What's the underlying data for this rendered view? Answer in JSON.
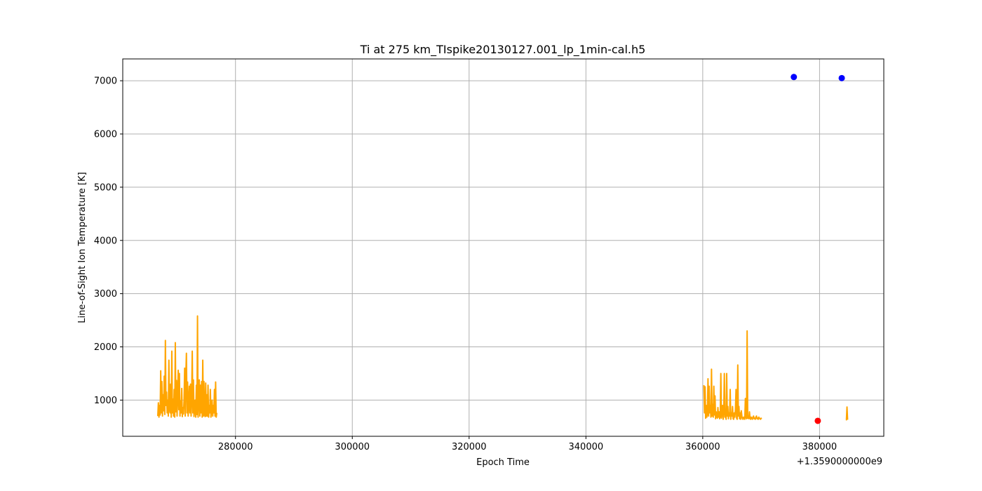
{
  "chart_data": {
    "type": "line",
    "title": "Ti at 275 km_TIspike20130127.001_lp_1min-cal.h5",
    "xlabel": "Epoch Time",
    "ylabel": "Line-of-Sight Ion Temperature [K]",
    "x_offset_text": "+1.3590000000e9",
    "xlim": [
      260700,
      391000
    ],
    "ylim": [
      320,
      7410
    ],
    "xticks": [
      280000,
      300000,
      320000,
      340000,
      360000,
      380000
    ],
    "xtick_labels": [
      "280000",
      "300000",
      "320000",
      "340000",
      "360000",
      "380000"
    ],
    "yticks": [
      1000,
      2000,
      3000,
      4000,
      5000,
      6000,
      7000
    ],
    "ytick_labels": [
      "1000",
      "2000",
      "3000",
      "4000",
      "5000",
      "6000",
      "7000"
    ],
    "grid": true,
    "colors": {
      "line": "#ffa500",
      "blue_points": "#0000ff",
      "red_point": "#ff0000",
      "grid": "#b0b0b0"
    },
    "series": [
      {
        "style": "line",
        "color": "#ffa500",
        "segments": [
          {
            "x": [
              266700,
              266800,
              266900,
              267000,
              267100,
              267200,
              267300,
              267400,
              267500,
              267600,
              267700,
              267800,
              267900,
              268000,
              268100,
              268200,
              268300,
              268400,
              268500,
              268600,
              268700,
              268800,
              268900,
              269000,
              269100,
              269200,
              269300,
              269400,
              269500,
              269600,
              269700,
              269800,
              269900,
              270000,
              270100,
              270200,
              270300,
              270400,
              270500,
              270600,
              270700,
              270800,
              270900,
              271000,
              271100,
              271200,
              271300,
              271400,
              271500,
              271600,
              271700,
              271800,
              271900,
              272000,
              272100,
              272200,
              272300,
              272400,
              272500,
              272600,
              272700,
              272800,
              272900,
              273000,
              273100,
              273200,
              273300,
              273400,
              273500,
              273600,
              273700,
              273800,
              273900,
              274000,
              274100,
              274200,
              274300,
              274400,
              274500,
              274600,
              274700,
              274800,
              274900,
              275000,
              275100,
              275200,
              275300,
              275400,
              275500,
              275600,
              275700,
              275800,
              275900,
              276000,
              276100,
              276200,
              276300,
              276400,
              276500,
              276600,
              276700,
              276800
            ],
            "y": [
              700,
              950,
              680,
              900,
              720,
              1550,
              760,
              1350,
              700,
              1100,
              800,
              1450,
              730,
              2120,
              900,
              1150,
              760,
              1000,
              700,
              1750,
              820,
              760,
              1300,
              680,
              1920,
              760,
              1020,
              700,
              1200,
              680,
              2080,
              780,
              1370,
              700,
              1100,
              1560,
              820,
              1500,
              700,
              980,
              760,
              1220,
              690,
              860,
              740,
              1010,
              1600,
              700,
              1460,
              1880,
              760,
              1340,
              700,
              900,
              1260,
              760,
              1300,
              700,
              1050,
              1920,
              760,
              1380,
              690,
              820,
              1000,
              680,
              1280,
              730,
              2580,
              680,
              960,
              1380,
              700,
              1280,
              760,
              1350,
              680,
              1750,
              700,
              1350,
              730,
              690,
              1320,
              700,
              1100,
              700,
              1280,
              680,
              900,
              760,
              1200,
              680,
              820,
              1000,
              700,
              900,
              760,
              1200,
              700,
              1340,
              680,
              760
            ]
          },
          {
            "x": [
              360200,
              360300,
              360400,
              360500,
              360600,
              360700,
              360800,
              360900,
              361000,
              361100,
              361200,
              361300,
              361400,
              361500,
              361600,
              361700,
              361800,
              361900,
              362000,
              362100,
              362200,
              362300,
              362400,
              362500,
              362600,
              362700,
              362800,
              362900,
              363000,
              363100,
              363200,
              363300,
              363400,
              363500,
              363600,
              363700,
              363800,
              363900,
              364000,
              364100,
              364200,
              364300,
              364400,
              364500,
              364600,
              364700,
              364800,
              364900,
              365000,
              365100,
              365200,
              365300,
              365400,
              365500,
              365600,
              365700,
              365800,
              365900,
              366000,
              366100,
              366200,
              366300,
              366400,
              366500,
              366600,
              366700,
              366800,
              366900,
              367000,
              367100,
              367200,
              367300,
              367400,
              367500,
              367600,
              367700,
              367800,
              367900,
              368000,
              368100,
              368200,
              368300,
              368400,
              368500,
              368600,
              368700,
              368800,
              368900,
              369000,
              369100,
              369200,
              369300,
              369400,
              369500,
              369600,
              369700,
              369800,
              369900,
              370000,
              370100
            ],
            "y": [
              1280,
              760,
              1250,
              660,
              900,
              680,
              760,
              1400,
              700,
              1260,
              760,
              900,
              680,
              1580,
              700,
              920,
              680,
              1260,
              720,
              1080,
              650,
              780,
              690,
              660,
              860,
              680,
              780,
              650,
              700,
              1500,
              660,
              760,
              900,
              640,
              800,
              1500,
              680,
              760,
              640,
              1500,
              700,
              880,
              650,
              760,
              700,
              1200,
              640,
              760,
              700,
              880,
              650,
              640,
              760,
              680,
              820,
              1200,
              660,
              640,
              1660,
              700,
              880,
              650,
              760,
              640,
              800,
              700,
              650,
              640,
              680,
              660,
              640,
              1030,
              680,
              650,
              2300,
              660,
              700,
              650,
              780,
              660,
              640,
              680,
              660,
              640,
              680,
              700,
              650,
              660,
              640,
              680,
              700,
              650,
              660,
              640,
              680,
              660,
              650,
              640,
              660,
              650
            ]
          },
          {
            "x": [
              384500,
              384600,
              384700,
              384800
            ],
            "y": [
              630,
              630,
              870,
              630
            ]
          }
        ]
      },
      {
        "style": "scatter",
        "color": "#0000ff",
        "x": [
          375600,
          383800
        ],
        "y": [
          7070,
          7050
        ]
      },
      {
        "style": "scatter",
        "color": "#ff0000",
        "x": [
          379700
        ],
        "y": [
          610
        ]
      }
    ]
  }
}
